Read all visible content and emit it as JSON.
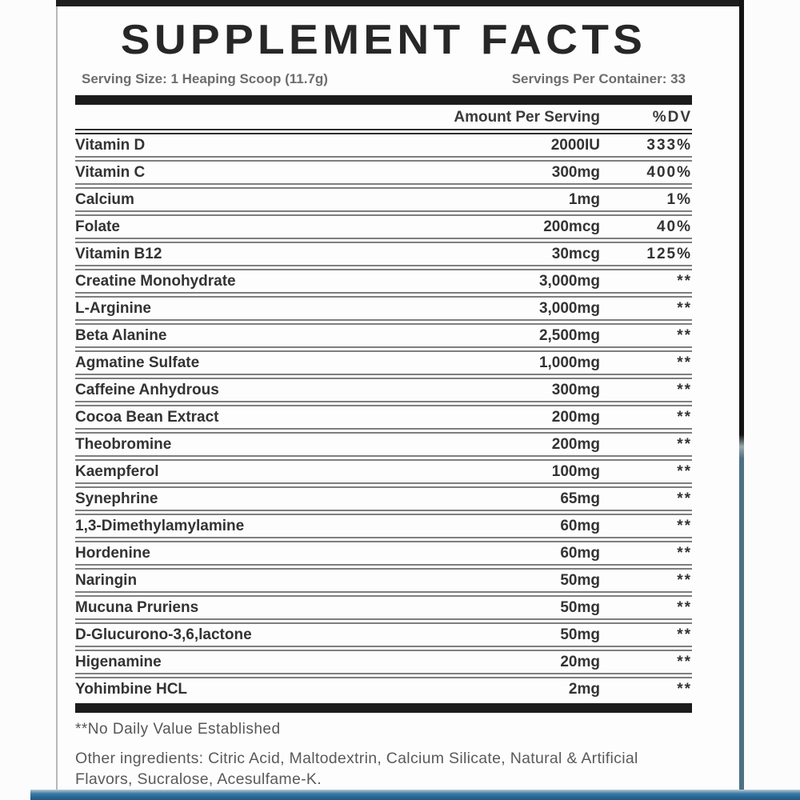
{
  "label": {
    "title": "SUPPLEMENT FACTS",
    "serving_size": "Serving Size: 1 Heaping Scoop (11.7g)",
    "servings_per_container": "Servings Per Container: 33",
    "footnote": "**No Daily Value Established",
    "other_ingredients": "Other ingredients: Citric Acid, Maltodextrin, Calcium Silicate, Natural & Artificial Flavors, Sucralose, Acesulfame-K.",
    "colors": {
      "accent_bar_blue": "#2a6793",
      "border_dark": "#141414",
      "border_slate": "#4e7082",
      "thick_rule": "#1c1c1c"
    }
  },
  "table": {
    "columns": {
      "amount": "Amount Per Serving",
      "dv": "%DV"
    },
    "rows": [
      {
        "name": "Vitamin D",
        "amount": "2000IU",
        "dv": "333%"
      },
      {
        "name": "Vitamin C",
        "amount": "300mg",
        "dv": "400%"
      },
      {
        "name": "Calcium",
        "amount": "1mg",
        "dv": "1%"
      },
      {
        "name": "Folate",
        "amount": "200mcg",
        "dv": "40%"
      },
      {
        "name": "Vitamin B12",
        "amount": "30mcg",
        "dv": "125%"
      },
      {
        "name": "Creatine Monohydrate",
        "amount": "3,000mg",
        "dv": "**"
      },
      {
        "name": "L-Arginine",
        "amount": "3,000mg",
        "dv": "**"
      },
      {
        "name": "Beta Alanine",
        "amount": "2,500mg",
        "dv": "**"
      },
      {
        "name": "Agmatine Sulfate",
        "amount": "1,000mg",
        "dv": "**"
      },
      {
        "name": "Caffeine Anhydrous",
        "amount": "300mg",
        "dv": "**"
      },
      {
        "name": "Cocoa Bean Extract",
        "amount": "200mg",
        "dv": "**"
      },
      {
        "name": "Theobromine",
        "amount": "200mg",
        "dv": "**"
      },
      {
        "name": "Kaempferol",
        "amount": "100mg",
        "dv": "**"
      },
      {
        "name": "Synephrine",
        "amount": "65mg",
        "dv": "**"
      },
      {
        "name": "1,3-Dimethylamylamine",
        "amount": "60mg",
        "dv": "**"
      },
      {
        "name": "Hordenine",
        "amount": "60mg",
        "dv": "**"
      },
      {
        "name": "Naringin",
        "amount": "50mg",
        "dv": "**"
      },
      {
        "name": "Mucuna Pruriens",
        "amount": "50mg",
        "dv": "**"
      },
      {
        "name": "D-Glucurono-3,6,lactone",
        "amount": "50mg",
        "dv": "**"
      },
      {
        "name": "Higenamine",
        "amount": "20mg",
        "dv": "**"
      },
      {
        "name": "Yohimbine HCL",
        "amount": "2mg",
        "dv": "**"
      }
    ]
  }
}
